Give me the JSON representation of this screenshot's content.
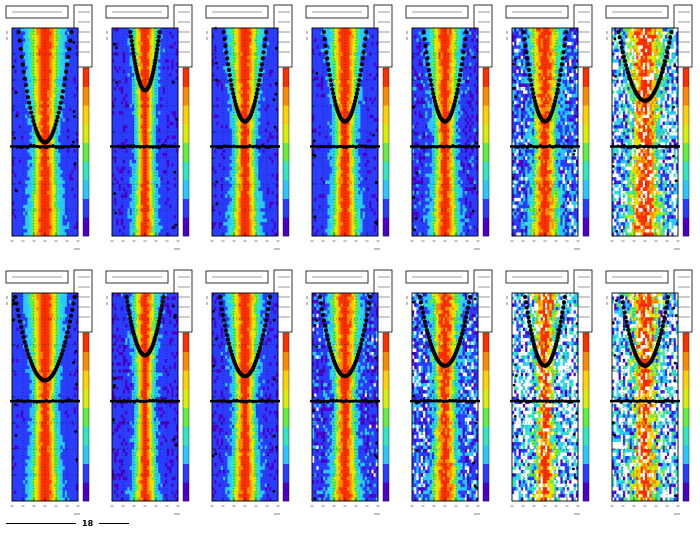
{
  "figure": {
    "rows": 2,
    "columns": 7,
    "footer_number": "18"
  },
  "chart_data": {
    "type": "heatmap",
    "title": "",
    "xlabel": "",
    "ylabel": "",
    "colormap": [
      "#4b00c8",
      "#2a3cff",
      "#28c8ff",
      "#30e8c0",
      "#60f040",
      "#d8f000",
      "#ffd000",
      "#ff8a00",
      "#ff3000"
    ],
    "overlay_marker_color": "#000000",
    "grid": true,
    "legend_placement": "top-right",
    "panels": [
      {
        "row": 0,
        "col": 0,
        "width": 0.62,
        "noise": 0.1,
        "u_depth": 0.55,
        "u_span": 0.4
      },
      {
        "row": 0,
        "col": 1,
        "width": 0.45,
        "noise": 0.12,
        "u_depth": 0.3,
        "u_span": 0.22
      },
      {
        "row": 0,
        "col": 2,
        "width": 0.55,
        "noise": 0.12,
        "u_depth": 0.45,
        "u_span": 0.32
      },
      {
        "row": 0,
        "col": 3,
        "width": 0.55,
        "noise": 0.12,
        "u_depth": 0.45,
        "u_span": 0.32
      },
      {
        "row": 0,
        "col": 4,
        "width": 0.55,
        "noise": 0.16,
        "u_depth": 0.45,
        "u_span": 0.32
      },
      {
        "row": 0,
        "col": 5,
        "width": 0.6,
        "noise": 0.3,
        "u_depth": 0.45,
        "u_span": 0.32
      },
      {
        "row": 0,
        "col": 6,
        "width": 0.75,
        "noise": 0.45,
        "u_depth": 0.35,
        "u_span": 0.4
      },
      {
        "row": 1,
        "col": 0,
        "width": 0.6,
        "noise": 0.1,
        "u_depth": 0.42,
        "u_span": 0.45
      },
      {
        "row": 1,
        "col": 1,
        "width": 0.45,
        "noise": 0.14,
        "u_depth": 0.3,
        "u_span": 0.28
      },
      {
        "row": 1,
        "col": 2,
        "width": 0.55,
        "noise": 0.14,
        "u_depth": 0.4,
        "u_span": 0.38
      },
      {
        "row": 1,
        "col": 3,
        "width": 0.55,
        "noise": 0.2,
        "u_depth": 0.4,
        "u_span": 0.38
      },
      {
        "row": 1,
        "col": 4,
        "width": 0.55,
        "noise": 0.3,
        "u_depth": 0.35,
        "u_span": 0.38
      },
      {
        "row": 1,
        "col": 5,
        "width": 0.5,
        "noise": 0.55,
        "u_depth": 0.35,
        "u_span": 0.3
      },
      {
        "row": 1,
        "col": 6,
        "width": 0.6,
        "noise": 0.6,
        "u_depth": 0.35,
        "u_span": 0.35
      }
    ]
  }
}
